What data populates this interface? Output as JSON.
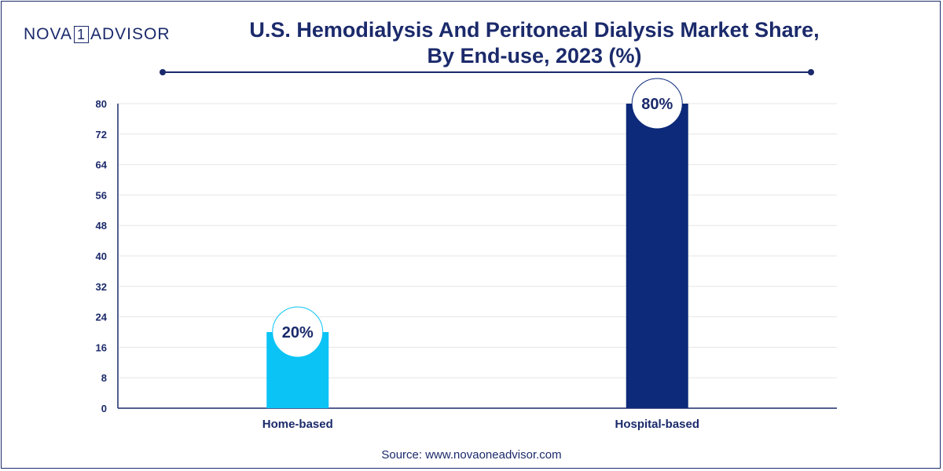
{
  "brand": {
    "left": "NOVA",
    "boxed": "1",
    "right": "ADVISOR"
  },
  "header": {
    "title_line1": "U.S. Hemodialysis And Peritoneal Dialysis Market Share,",
    "title_line2": "By End-use, 2023 (%)"
  },
  "footer": {
    "source": "Source: www.novaoneadvisor.com"
  },
  "chart_data": {
    "type": "bar",
    "title": "U.S. Hemodialysis And Peritoneal Dialysis Market Share, By End-use, 2023 (%)",
    "categories": [
      "Home-based",
      "Hospital-based"
    ],
    "values": [
      20,
      80
    ],
    "data_labels": [
      "20%",
      "80%"
    ],
    "bar_colors": [
      "#0bc4f5",
      "#0d2a7a"
    ],
    "xlabel": "",
    "ylabel": "",
    "ylim": [
      0,
      80
    ],
    "yticks": [
      0,
      8,
      16,
      24,
      32,
      40,
      48,
      56,
      64,
      72,
      80
    ],
    "grid": true,
    "legend": "none"
  }
}
